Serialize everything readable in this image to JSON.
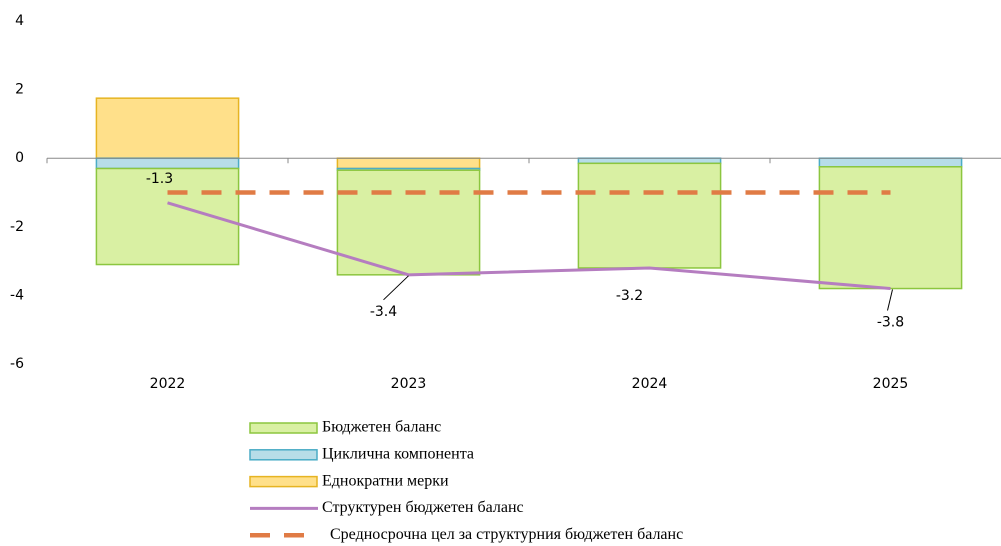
{
  "chart_data": {
    "type": "bar",
    "stacked": true,
    "categories": [
      "2022",
      "2023",
      "2024",
      "2025"
    ],
    "series": [
      {
        "name": "Бюджетен баланс",
        "type": "bar",
        "color": "#d9f0a3",
        "stroke": "#8cc63f",
        "values": [
          -2.8,
          -3.05,
          -3.05,
          -3.55
        ]
      },
      {
        "name": "Циклична компонента",
        "type": "bar",
        "color": "#b7dde8",
        "stroke": "#4bacc6",
        "values": [
          -0.3,
          -0.05,
          -0.15,
          -0.25
        ]
      },
      {
        "name": "Еднократни мерки",
        "type": "bar",
        "color": "#ffe08a",
        "stroke": "#e6b422",
        "values": [
          1.75,
          -0.3,
          0,
          0
        ]
      },
      {
        "name": "Структурен бюджетен баланс",
        "type": "line",
        "color": "#b57dc0",
        "values": [
          -1.3,
          -3.4,
          -3.2,
          -3.8
        ]
      },
      {
        "name": "Средносрочна цел за структурния бюджетен баланс",
        "type": "line",
        "style": "dashed",
        "color": "#e07b45",
        "values": [
          -1,
          -1,
          -1,
          -1
        ]
      }
    ],
    "labeled_series": 3,
    "ylim": [
      -6,
      4
    ],
    "yticks": [
      -6,
      -4,
      -2,
      0,
      2,
      4
    ]
  }
}
